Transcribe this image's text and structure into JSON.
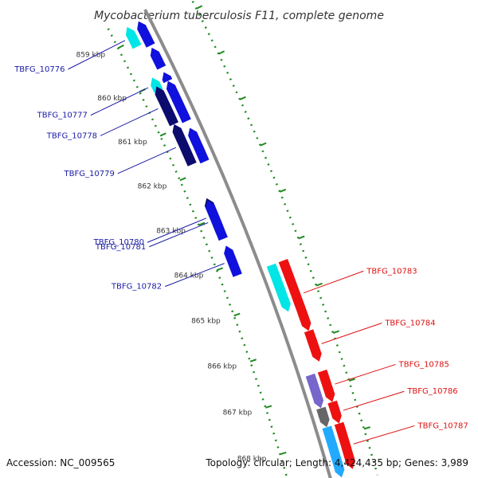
{
  "title": "Mycobacterium tuberculosis F11, complete genome",
  "footer": {
    "accession_text": "Accession: NC_009565",
    "summary_text": "Topology: circular; Length: 4,424,435 bp; Genes: 3,989"
  },
  "colors": {
    "backbone": "#8c8c8c",
    "tick_green": "#1f8a1f",
    "label_blue": "#1a1aa6",
    "label_red": "#dd1111",
    "gene_blue": "#1111dd",
    "gene_navy": "#0c0c6e",
    "gene_cyan": "#00e5e5",
    "gene_red": "#ee1111",
    "gene_purple": "#7766cc",
    "gene_gray": "#666666",
    "gene_skyblue": "#22aaff"
  },
  "ticks": [
    {
      "label": "859 kbp",
      "kbp": 859
    },
    {
      "label": "860 kbp",
      "kbp": 860
    },
    {
      "label": "861 kbp",
      "kbp": 861
    },
    {
      "label": "862 kbp",
      "kbp": 862
    },
    {
      "label": "863 kbp",
      "kbp": 863
    },
    {
      "label": "864 kbp",
      "kbp": 864
    },
    {
      "label": "865 kbp",
      "kbp": 865
    },
    {
      "label": "866 kbp",
      "kbp": 866
    },
    {
      "label": "867 kbp",
      "kbp": 867
    },
    {
      "label": "868 kbp",
      "kbp": 868
    }
  ],
  "genes": [
    {
      "name": "TBFG_10776",
      "strand": "-",
      "start_kbp": 858.7,
      "end_kbp": 859.15,
      "color": "gene_cyan",
      "label_color": "label_blue"
    },
    {
      "name": "TBFG_10777",
      "strand": "-",
      "start_kbp": 859.85,
      "end_kbp": 860.15,
      "color": "gene_cyan",
      "label_color": "label_blue"
    },
    {
      "name": "TBFG_10778",
      "strand": "-",
      "start_kbp": 860.05,
      "end_kbp": 860.9,
      "color": "gene_navy",
      "label_color": "label_blue"
    },
    {
      "name": "TBFG_10779",
      "strand": "-",
      "start_kbp": 860.9,
      "end_kbp": 861.8,
      "color": "gene_navy",
      "label_color": "label_blue"
    },
    {
      "name": "TBFG_10780",
      "strand": "-",
      "start_kbp": 862.55,
      "end_kbp": 863.3,
      "color": "gene_navy",
      "label_color": "label_blue"
    },
    {
      "name": "TBFG_10781",
      "strand": "-",
      "start_kbp": 862.6,
      "end_kbp": 863.45,
      "color": "gene_blue",
      "label_color": "label_blue"
    },
    {
      "name": "TBFG_10782",
      "strand": "-",
      "start_kbp": 863.6,
      "end_kbp": 864.25,
      "color": "gene_blue",
      "label_color": "label_blue"
    },
    {
      "name": "TBFG_10783",
      "strand": "+",
      "start_kbp": 864.3,
      "end_kbp": 865.8,
      "color": "gene_red",
      "label_color": "label_red"
    },
    {
      "name": "TBFG_10784",
      "strand": "+",
      "start_kbp": 865.8,
      "end_kbp": 866.45,
      "color": "gene_red",
      "label_color": "label_red"
    },
    {
      "name": "TBFG_10785",
      "strand": "+",
      "start_kbp": 866.65,
      "end_kbp": 867.3,
      "color": "gene_red",
      "label_color": "label_red"
    },
    {
      "name": "TBFG_10786",
      "strand": "+",
      "start_kbp": 867.3,
      "end_kbp": 867.75,
      "color": "gene_red",
      "label_color": "label_red"
    },
    {
      "name": "TBFG_10787",
      "strand": "+",
      "start_kbp": 867.75,
      "end_kbp": 868.7,
      "color": "gene_red",
      "label_color": "label_red"
    }
  ],
  "unlabeled_features": [
    {
      "track": -1,
      "start_kbp": 858.7,
      "end_kbp": 859.25,
      "color": "gene_blue",
      "strand": "-"
    },
    {
      "track": -1,
      "start_kbp": 859.3,
      "end_kbp": 859.75,
      "color": "gene_blue",
      "strand": "-"
    },
    {
      "track": -1,
      "start_kbp": 859.85,
      "end_kbp": 860.05,
      "color": "gene_blue",
      "strand": "-"
    },
    {
      "track": -1,
      "start_kbp": 860.05,
      "end_kbp": 860.95,
      "color": "gene_blue",
      "strand": "-"
    },
    {
      "track": -1,
      "start_kbp": 861.1,
      "end_kbp": 861.85,
      "color": "gene_blue",
      "strand": "-"
    },
    {
      "track": 1,
      "start_kbp": 864.3,
      "end_kbp": 865.3,
      "color": "gene_cyan",
      "strand": "+"
    },
    {
      "track": 1,
      "start_kbp": 866.65,
      "end_kbp": 867.35,
      "color": "gene_purple",
      "strand": "+"
    },
    {
      "track": 1,
      "start_kbp": 867.35,
      "end_kbp": 867.75,
      "color": "gene_gray",
      "strand": "+"
    },
    {
      "track": 1,
      "start_kbp": 867.75,
      "end_kbp": 868.8,
      "color": "gene_skyblue",
      "strand": "+"
    }
  ]
}
